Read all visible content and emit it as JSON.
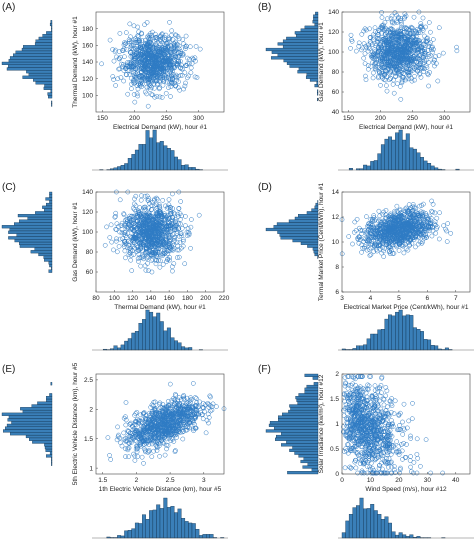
{
  "figure": {
    "marker_color": "#2e7bc4",
    "hist_fill": "#3a7fb8",
    "hist_edge": "#0b2a45"
  },
  "chart_data": [
    {
      "panel": "(A)",
      "type": "scatter",
      "xlabel": "Electrical Demand (kW), hour #1",
      "ylabel": "Thermal Demand (kW), hour #1",
      "xlim": [
        140,
        340
      ],
      "ylim": [
        80,
        200
      ],
      "xticks": [
        150,
        200,
        250,
        300
      ],
      "yticks": [
        100,
        120,
        140,
        160,
        180
      ],
      "x_dist": {
        "mean": 230,
        "sd": 25
      },
      "y_dist": {
        "mean": 140,
        "sd": 16
      },
      "corr": 0.0,
      "grid": false
    },
    {
      "panel": "(B)",
      "type": "scatter",
      "xlabel": "Electrical Demand (kW), hour #1",
      "ylabel": "Gas Demand (kW), hour #1",
      "xlim": [
        140,
        340
      ],
      "ylim": [
        40,
        140
      ],
      "xticks": [
        150,
        200,
        250,
        300
      ],
      "yticks": [
        40,
        60,
        80,
        100,
        120,
        140
      ],
      "x_dist": {
        "mean": 230,
        "sd": 25
      },
      "y_dist": {
        "mean": 100,
        "sd": 14
      },
      "corr": 0.0,
      "grid": false
    },
    {
      "panel": "(C)",
      "type": "scatter",
      "xlabel": "Thermal Demand (kW), hour #1",
      "ylabel": "Gas Demand (kW), hour #1",
      "xlim": [
        80,
        220
      ],
      "ylim": [
        40,
        140
      ],
      "xticks": [
        80,
        100,
        120,
        140,
        160,
        180,
        200,
        220
      ],
      "yticks": [
        60,
        80,
        100,
        120,
        140
      ],
      "x_dist": {
        "mean": 140,
        "sd": 16
      },
      "y_dist": {
        "mean": 100,
        "sd": 14
      },
      "corr": 0.0,
      "grid": false
    },
    {
      "panel": "(D)",
      "type": "scatter",
      "xlabel": "Electrical Market Price (Cent/kWh), hour #1",
      "ylabel": "Termal Market Price (Cent/kWh), hour #1",
      "xlim": [
        3,
        7.5
      ],
      "ylim": [
        6,
        14
      ],
      "xticks": [
        3,
        4,
        5,
        6,
        7
      ],
      "yticks": [
        6,
        8,
        10,
        12,
        14
      ],
      "x_dist": {
        "mean": 5,
        "sd": 0.6
      },
      "y_dist": {
        "mean": 11,
        "sd": 0.8
      },
      "corr": 0.3,
      "grid": false
    },
    {
      "panel": "(E)",
      "type": "scatter",
      "xlabel": "1th Electric Vehicle Distance (km), hour #5",
      "ylabel": "5th Electric Vehicle Distance (km), hour #5",
      "xlim": [
        1.4,
        3.3
      ],
      "ylim": [
        0.9,
        2.6
      ],
      "xticks": [
        1.5,
        2,
        2.5,
        3
      ],
      "yticks": [
        1,
        1.5,
        2,
        2.5
      ],
      "x_dist": {
        "mean": 2.4,
        "sd": 0.28
      },
      "y_dist": {
        "mean": 1.75,
        "sd": 0.22
      },
      "corr": 0.6,
      "grid": false
    },
    {
      "panel": "(F)",
      "type": "scatter",
      "xlabel": "Wind Speed (m/s), hour #12",
      "ylabel": "Solar Irradiance (kw/m²), hour #12",
      "xlim": [
        0,
        45
      ],
      "ylim": [
        0,
        2
      ],
      "xticks": [
        0,
        10,
        20,
        30,
        40
      ],
      "yticks": [
        0,
        0.5,
        1,
        1.5,
        2
      ],
      "x_dist": {
        "kind": "weibull",
        "scale": 11,
        "shape": 1.9
      },
      "y_dist": {
        "kind": "beta",
        "mean": 0.9,
        "sd": 0.45
      },
      "corr": -0.35,
      "grid": false
    }
  ]
}
